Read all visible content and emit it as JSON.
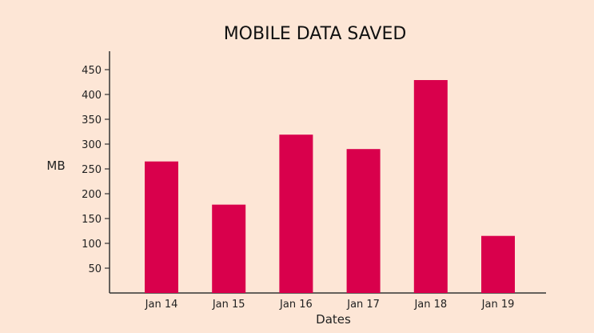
{
  "chart_data": {
    "type": "bar",
    "title": "MOBILE DATA SAVED",
    "xlabel": "Dates",
    "ylabel": "MB",
    "categories": [
      "Jan 14",
      "Jan 15",
      "Jan 16",
      "Jan 17",
      "Jan 18",
      "Jan 19"
    ],
    "values": [
      265,
      178,
      319,
      290,
      429,
      115
    ],
    "ylim": [
      0,
      475
    ],
    "yticks": [
      50,
      100,
      150,
      200,
      250,
      300,
      350,
      400,
      450
    ],
    "bar_color": "#d9004c",
    "grid": false
  }
}
